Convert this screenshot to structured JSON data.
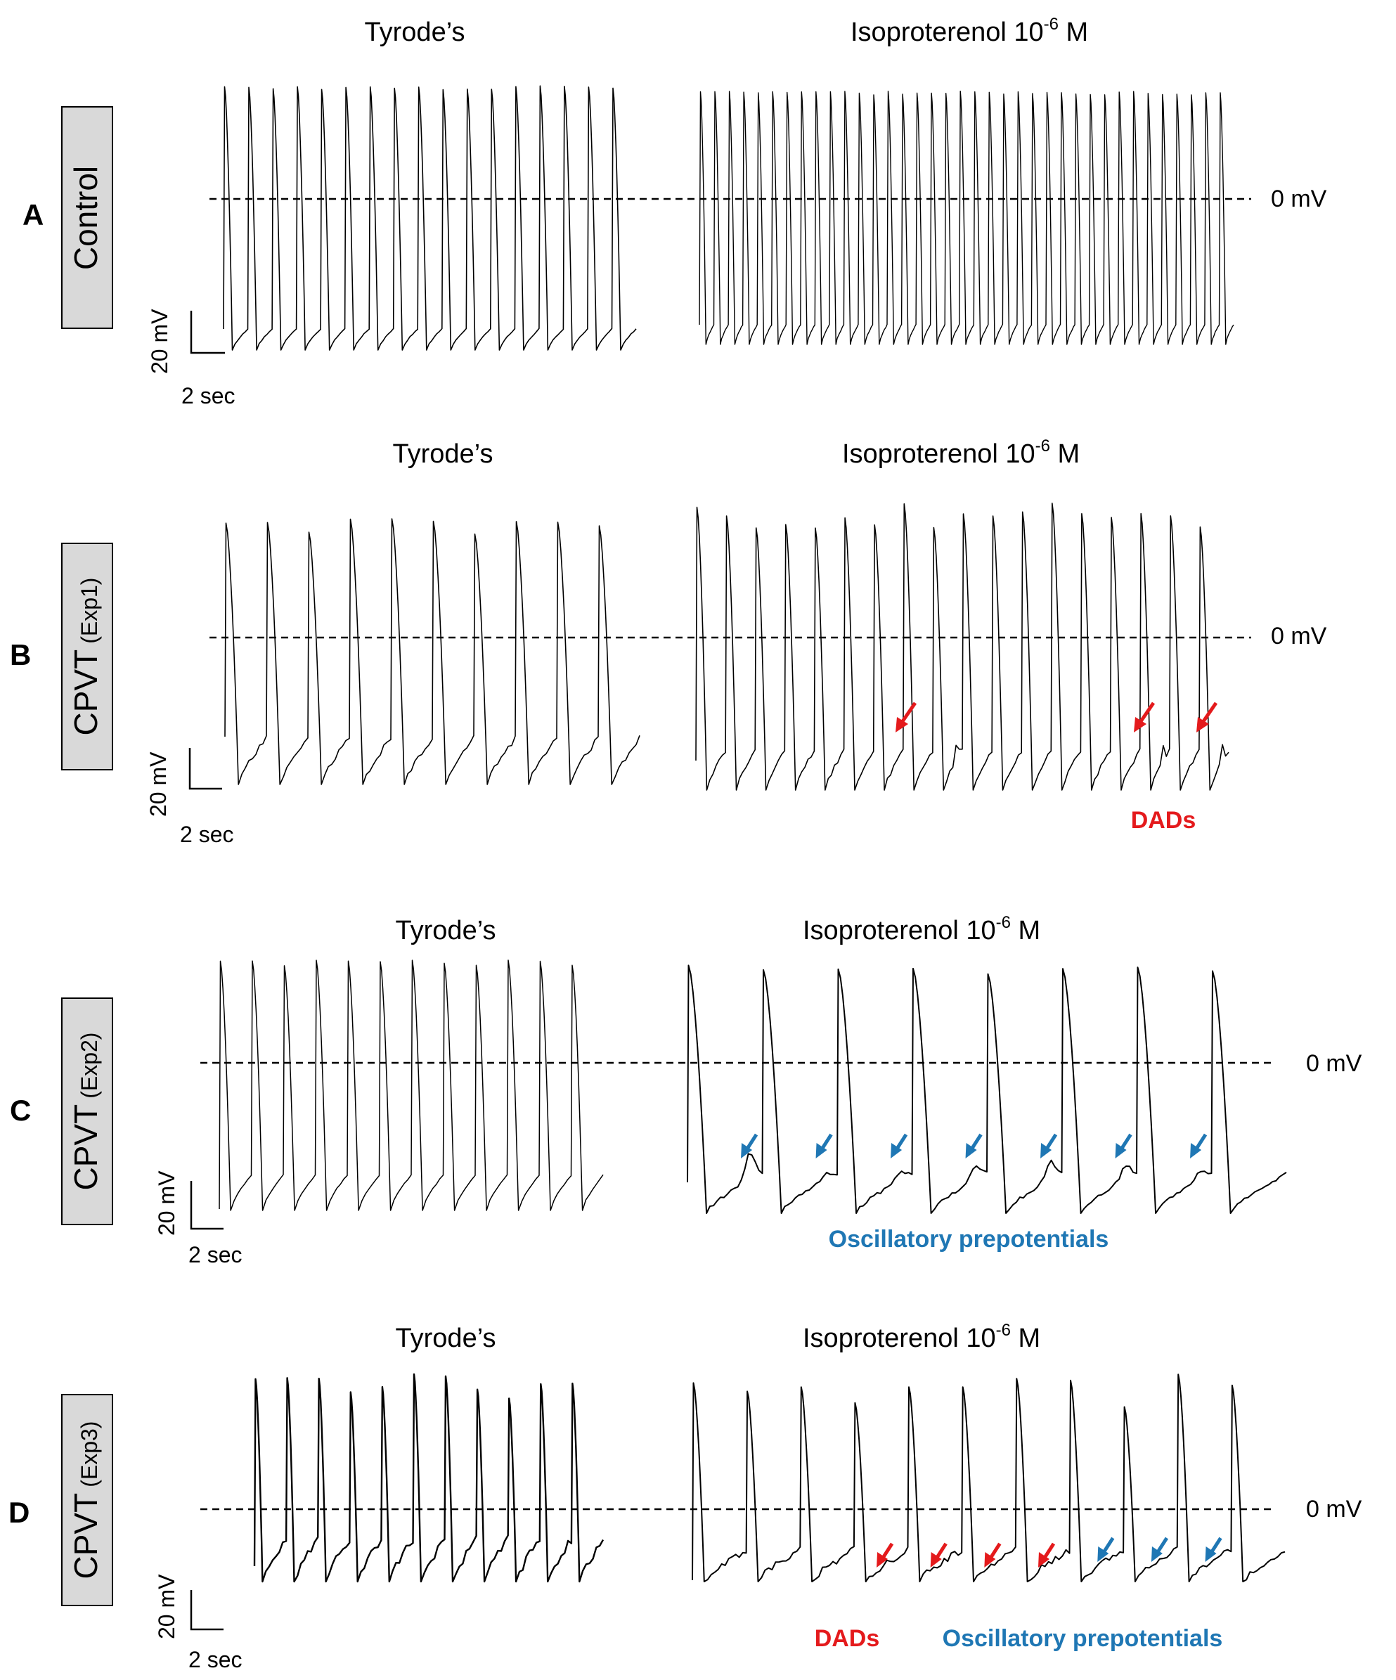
{
  "colors": {
    "dad": "#e41a1c",
    "osc": "#1f77b4",
    "box_fill": "#d9d9d9",
    "trace": "#000000"
  },
  "labels": {
    "tyrode": "Tyrode’s",
    "iso_prefix": "Isoproterenol 10",
    "iso_exp": "-6",
    "iso_unit": " M",
    "zero_mv": "0 mV",
    "mv_scale": "20 mV",
    "sec_scale": "2 sec",
    "dads": "DADs",
    "osc": "Oscillatory prepotentials"
  },
  "panels": [
    {
      "letter": "A",
      "group": "Control",
      "exp": ""
    },
    {
      "letter": "B",
      "group": "CPVT",
      "exp": "(Exp1)"
    },
    {
      "letter": "C",
      "group": "CPVT",
      "exp": "(Exp2)"
    },
    {
      "letter": "D",
      "group": "CPVT",
      "exp": "(Exp3)"
    }
  ],
  "chart_data": {
    "type": "line",
    "y_reference": {
      "label": "0 mV",
      "value": 0
    },
    "scale_bars": {
      "y": "20 mV",
      "x": "2 sec"
    },
    "panels": [
      {
        "letter": "A",
        "tyrode": {
          "action_potentials": 17,
          "dads": 0,
          "oscillatory_prepotentials": 0
        },
        "isoproterenol": {
          "action_potentials": 37,
          "dads": 0,
          "oscillatory_prepotentials": 0
        }
      },
      {
        "letter": "B",
        "tyrode": {
          "action_potentials": 10,
          "dads": 0,
          "oscillatory_prepotentials": 0
        },
        "isoproterenol": {
          "action_potentials": 18,
          "dads": 3,
          "oscillatory_prepotentials": 0
        }
      },
      {
        "letter": "C",
        "tyrode": {
          "action_potentials": 12,
          "dads": 0,
          "oscillatory_prepotentials": 0
        },
        "isoproterenol": {
          "action_potentials": 8,
          "dads": 0,
          "oscillatory_prepotentials": 7
        }
      },
      {
        "letter": "D",
        "tyrode": {
          "action_potentials": 11,
          "dads": 0,
          "oscillatory_prepotentials": 0
        },
        "isoproterenol": {
          "action_potentials": 11,
          "dads": 4,
          "oscillatory_prepotentials": 3
        }
      }
    ]
  }
}
